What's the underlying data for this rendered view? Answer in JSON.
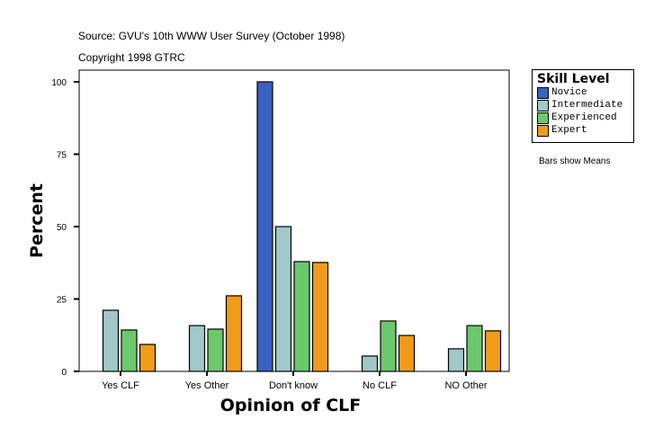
{
  "header": {
    "source": "Source: GVU's 10th WWW User Survey (October 1998)",
    "copyright": "Copyright 1998 GTRC"
  },
  "note": "Bars show Means",
  "chart_data": {
    "type": "bar",
    "xlabel": "Opinion of CLF",
    "ylabel": "Percent",
    "ylim": [
      0,
      100
    ],
    "yticks": [
      0,
      25,
      50,
      75,
      100
    ],
    "categories": [
      "Yes CLF",
      "Yes Other",
      "Don't know",
      "No CLF",
      "NO Other"
    ],
    "legend_title": "Skill Level",
    "legend_placement": "right",
    "series": [
      {
        "name": "Novice",
        "color": "#3a60c0",
        "values": [
          null,
          null,
          100,
          null,
          null
        ]
      },
      {
        "name": "Intermediate",
        "color": "#a0c8c8",
        "values": [
          21.1,
          15.8,
          50,
          5.3,
          7.8
        ]
      },
      {
        "name": "Experienced",
        "color": "#6cc86c",
        "values": [
          14.3,
          14.6,
          37.9,
          17.4,
          15.8
        ]
      },
      {
        "name": "Expert",
        "color": "#f09c1a",
        "values": [
          9.3,
          26.1,
          37.6,
          12.4,
          14.0
        ]
      }
    ]
  }
}
